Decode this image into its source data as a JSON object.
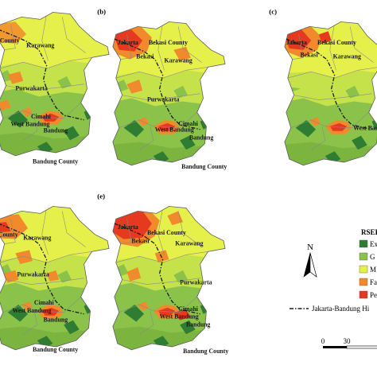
{
  "panels": [
    {
      "id": "a",
      "letter": "",
      "labels": {
        "bekasi_county": "",
        "karawang": "Karawang",
        "purwakarta": "Purwakarta",
        "cimahi": "Cimahi",
        "west_bandung": "West Bandung",
        "bandung": "Bandung",
        "bandung_county": "Bandung County",
        "jakarta": "",
        "bekasi": "",
        "west_county": "County"
      }
    },
    {
      "id": "b",
      "letter": "(b)",
      "labels": {
        "jakarta": "Jakarta",
        "bekasi": "Bekasi",
        "bekasi_county": "Bekasi County",
        "karawang": "Karawang",
        "purwakarta": "Purwakarta",
        "cimahi": "Cimahi",
        "west_bandung": "West Bandung",
        "bandung": "Bandung",
        "bandung_county": "Bandung County"
      }
    },
    {
      "id": "c",
      "letter": "(c)",
      "labels": {
        "jakarta": "Jakarta",
        "bekasi": "Bekasi",
        "bekasi_county": "Bekasi County",
        "karawang": "Karawang",
        "west_bandung": "West Ban"
      }
    },
    {
      "id": "d",
      "letter": "",
      "labels": {
        "west_county": "County",
        "karawang": "Karawang",
        "purwakarta": "Purwakarta",
        "cimahi": "Cimahi",
        "west_bandung": "West Bandung",
        "bandung": "Bandung",
        "bandung_county": "Bandung County"
      }
    },
    {
      "id": "e",
      "letter": "(e)",
      "labels": {
        "jakarta": "Jakarta",
        "bekasi": "Bekasi",
        "bekasi_county": "Bekasi County",
        "karawang": "Karawang",
        "purwakarta": "Purwakarta",
        "cimahi": "Cimahi",
        "west_bandung": "West Bandung",
        "bandung": "Bandung",
        "bandung_county": "Bandung County"
      }
    }
  ],
  "north_arrow": {
    "label": "N"
  },
  "legend": {
    "title": "RSEI",
    "classes": [
      {
        "label": "Ex",
        "color": "#2e7d32"
      },
      {
        "label": "G",
        "color": "#8bc34a"
      },
      {
        "label": "M",
        "color": "#e6f04a"
      },
      {
        "label": "Fa",
        "color": "#f08a2c"
      },
      {
        "label": "Pe",
        "color": "#e53920"
      }
    ],
    "railway_label": "Jakarta-Bandung Hi",
    "railway_color": "#1a1a1a"
  },
  "scale_bar": {
    "ticks": [
      "0",
      "30"
    ]
  },
  "colors": {
    "excellent": "#2e7d32",
    "good": "#8bc34a",
    "moderate": "#e6f04a",
    "fair": "#f08a2c",
    "poor": "#e53920",
    "boundary": "#7a7a7a"
  }
}
